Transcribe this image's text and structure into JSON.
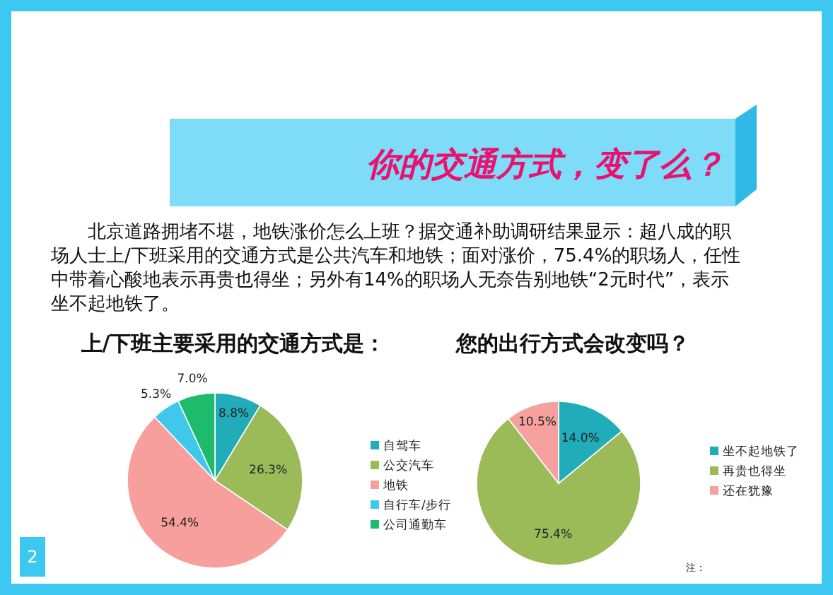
{
  "chart_data": [
    {
      "type": "pie",
      "title": "上/下班主要采用的交通方式是：",
      "annotations": [
        "你的交通方式，变了么？",
        "北京道路拥堵不堪，地铁涨价怎么上班？据交通补助调研结果显示：超八成的职场人士上/下班采用的交通方式是公共汽车和地铁；面对涨价，75.4%的职场人，任性中带着心酸地表示再贵也得坐；另外有14%的职场人无奈告别地铁“2元时代”，表示坐不起地铁了。",
        "2"
      ],
      "categories": [
        "自驾车",
        "公交汽车",
        "地铁",
        "自行车/步行",
        "公司通勤车"
      ],
      "values": [
        8.8,
        26.3,
        54.4,
        5.3,
        7.0
      ],
      "value_labels": [
        "8.8%",
        "26.3%",
        "54.4%",
        "5.3%",
        "7.0%"
      ],
      "colors": [
        "#20acb8",
        "#9bbb59",
        "#f79f9c",
        "#40c8ec",
        "#1fbb6c"
      ],
      "legend": "right"
    },
    {
      "type": "pie",
      "title": "您的出行方式会改变吗？",
      "annotations": [
        "注："
      ],
      "categories": [
        "坐不起地铁了",
        "再贵也得坐",
        "还在犹豫"
      ],
      "values": [
        14.0,
        75.4,
        10.5
      ],
      "value_labels": [
        "14.0%",
        "75.4%",
        "10.5%"
      ],
      "colors": [
        "#20acb8",
        "#9bbb59",
        "#f7a0a0"
      ],
      "legend": "right"
    }
  ]
}
